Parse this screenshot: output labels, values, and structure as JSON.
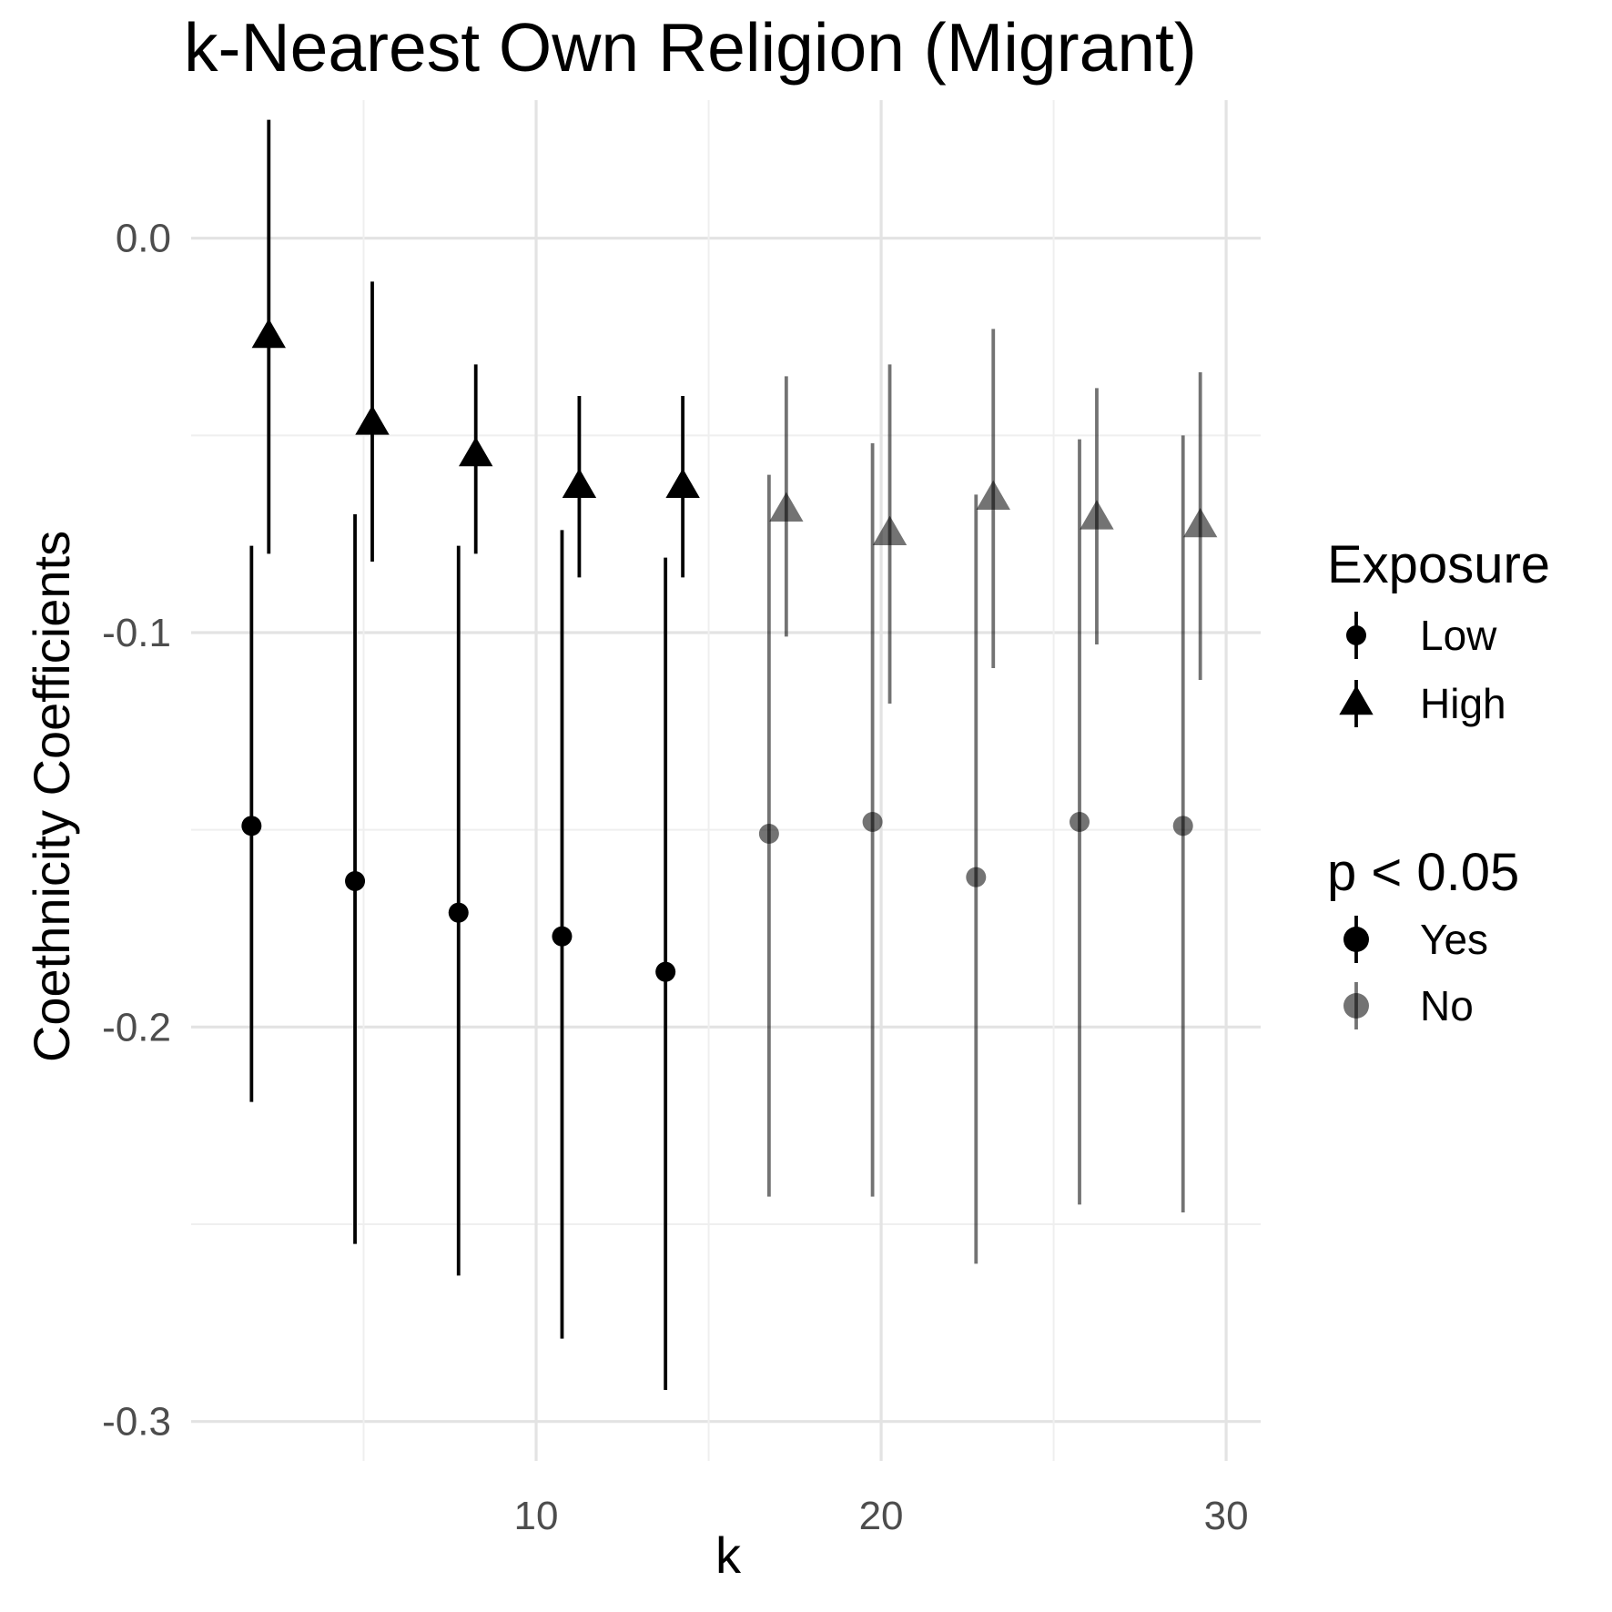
{
  "chart_data": {
    "type": "scatter",
    "title": "k-Nearest Own Religion (Migrant)",
    "xlabel": "k",
    "ylabel": "Coethnicity Coefficients",
    "xlim": [
      0,
      31
    ],
    "ylim": [
      -0.31,
      0.035
    ],
    "x_ticks": [
      10,
      20,
      30
    ],
    "x_tick_labels": [
      "10",
      "20",
      "30"
    ],
    "y_ticks": [
      0.0,
      -0.1,
      -0.2,
      -0.3
    ],
    "y_tick_labels": [
      "0.0",
      "-0.1",
      "-0.2",
      "-0.3"
    ],
    "grid": true,
    "legend_position": "right",
    "series": [
      {
        "name": "Low",
        "shape": "circle",
        "points": [
          {
            "k": 2,
            "estimate": -0.149,
            "lower": -0.219,
            "upper": -0.078,
            "significant": "Yes"
          },
          {
            "k": 5,
            "estimate": -0.163,
            "lower": -0.255,
            "upper": -0.07,
            "significant": "Yes"
          },
          {
            "k": 8,
            "estimate": -0.171,
            "lower": -0.263,
            "upper": -0.078,
            "significant": "Yes"
          },
          {
            "k": 11,
            "estimate": -0.177,
            "lower": -0.279,
            "upper": -0.074,
            "significant": "Yes"
          },
          {
            "k": 14,
            "estimate": -0.186,
            "lower": -0.292,
            "upper": -0.081,
            "significant": "Yes"
          },
          {
            "k": 17,
            "estimate": -0.151,
            "lower": -0.243,
            "upper": -0.06,
            "significant": "No"
          },
          {
            "k": 20,
            "estimate": -0.148,
            "lower": -0.243,
            "upper": -0.052,
            "significant": "No"
          },
          {
            "k": 23,
            "estimate": -0.162,
            "lower": -0.26,
            "upper": -0.065,
            "significant": "No"
          },
          {
            "k": 26,
            "estimate": -0.148,
            "lower": -0.245,
            "upper": -0.051,
            "significant": "No"
          },
          {
            "k": 29,
            "estimate": -0.149,
            "lower": -0.247,
            "upper": -0.05,
            "significant": "No"
          }
        ]
      },
      {
        "name": "High",
        "shape": "triangle",
        "points": [
          {
            "k": 2,
            "estimate": -0.025,
            "lower": -0.08,
            "upper": 0.03,
            "significant": "Yes"
          },
          {
            "k": 5,
            "estimate": -0.047,
            "lower": -0.082,
            "upper": -0.011,
            "significant": "Yes"
          },
          {
            "k": 8,
            "estimate": -0.055,
            "lower": -0.08,
            "upper": -0.032,
            "significant": "Yes"
          },
          {
            "k": 11,
            "estimate": -0.063,
            "lower": -0.086,
            "upper": -0.04,
            "significant": "Yes"
          },
          {
            "k": 14,
            "estimate": -0.063,
            "lower": -0.086,
            "upper": -0.04,
            "significant": "Yes"
          },
          {
            "k": 17,
            "estimate": -0.069,
            "lower": -0.101,
            "upper": -0.035,
            "significant": "No"
          },
          {
            "k": 20,
            "estimate": -0.075,
            "lower": -0.118,
            "upper": -0.032,
            "significant": "No"
          },
          {
            "k": 23,
            "estimate": -0.066,
            "lower": -0.109,
            "upper": -0.023,
            "significant": "No"
          },
          {
            "k": 26,
            "estimate": -0.071,
            "lower": -0.103,
            "upper": -0.038,
            "significant": "No"
          },
          {
            "k": 29,
            "estimate": -0.073,
            "lower": -0.112,
            "upper": -0.034,
            "significant": "No"
          }
        ]
      }
    ],
    "legends": [
      {
        "title": "Exposure",
        "entries": [
          {
            "label": "Low",
            "shape": "circle"
          },
          {
            "label": "High",
            "shape": "triangle"
          }
        ]
      },
      {
        "title": "p < 0.05",
        "entries": [
          {
            "label": "Yes",
            "opacity": 1.0
          },
          {
            "label": "No",
            "opacity": 0.55
          }
        ]
      }
    ],
    "colors": {
      "significant": "#000000",
      "not_significant": "#000000",
      "not_significant_opacity": 0.55
    }
  }
}
